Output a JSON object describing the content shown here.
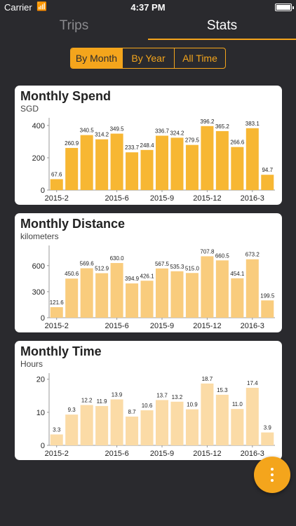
{
  "status_bar": {
    "carrier": "Carrier",
    "time": "4:37 PM"
  },
  "tabs": [
    {
      "label": "Trips",
      "active": false
    },
    {
      "label": "Stats",
      "active": true
    }
  ],
  "segments": [
    {
      "label": "By Month",
      "active": true
    },
    {
      "label": "By Year",
      "active": false
    },
    {
      "label": "All Time",
      "active": false
    }
  ],
  "colors": {
    "accent": "#f4a51c",
    "bar_spend": "#f7b733",
    "bar_distance": "#f9cc7d",
    "bar_time": "#fbdba6",
    "background": "#2a2a2e"
  },
  "fab": {
    "icon": "more-vertical-icon"
  },
  "chart_data": [
    {
      "type": "bar",
      "title": "Monthly Spend",
      "subtitle": "SGD",
      "values": [
        67.6,
        260.9,
        340.5,
        314.2,
        349.5,
        233.7,
        248.4,
        336.7,
        324.2,
        279.5,
        396.2,
        365.2,
        266.6,
        383.1,
        94.7
      ],
      "value_labels": [
        "67.6",
        "260.9",
        "340.5",
        "314.2",
        "349.5",
        "233.7",
        "248.4",
        "336.7",
        "324.2",
        "279.5",
        "396.2",
        "365.2",
        "266.6",
        "383.1",
        "94.7"
      ],
      "x_ticks": [
        "2015-2",
        "2015-6",
        "2015-9",
        "2015-12",
        "2016-3"
      ],
      "y_ticks": [
        "0",
        "200",
        "400"
      ],
      "ylim": [
        0,
        430
      ]
    },
    {
      "type": "bar",
      "title": "Monthly Distance",
      "subtitle": "kilometers",
      "values": [
        121.6,
        450.6,
        569.6,
        512.9,
        630.0,
        394.9,
        426.1,
        567.5,
        535.3,
        515.0,
        707.8,
        660.5,
        454.1,
        673.2,
        199.5
      ],
      "value_labels": [
        "121.6",
        "450.6",
        "569.6",
        "512.9",
        "630.0",
        "394.9",
        "426.1",
        "567.5",
        "535.3",
        "515.0",
        "707.8",
        "660.5",
        "454.1",
        "673.2",
        "199.5"
      ],
      "x_ticks": [
        "2015-2",
        "2015-6",
        "2015-9",
        "2015-12",
        "2016-3"
      ],
      "y_ticks": [
        "0",
        "300",
        "600"
      ],
      "ylim": [
        0,
        800
      ]
    },
    {
      "type": "bar",
      "title": "Monthly Time",
      "subtitle": "Hours",
      "values": [
        3.3,
        9.3,
        12.2,
        11.9,
        13.9,
        8.7,
        10.6,
        13.7,
        13.2,
        10.9,
        18.7,
        15.3,
        11.0,
        17.4,
        3.9
      ],
      "value_labels": [
        "3.3",
        "9.3",
        "12.2",
        "11.9",
        "13.9",
        "8.7",
        "10.6",
        "13.7",
        "13.2",
        "10.9",
        "18.7",
        "15.3",
        "11.0",
        "17.4",
        "3.9"
      ],
      "x_ticks": [
        "2015-2",
        "2015-6",
        "2015-9",
        "2015-12",
        "2016-3"
      ],
      "y_ticks": [
        "0",
        "10",
        "20"
      ],
      "ylim": [
        0,
        21
      ]
    }
  ]
}
